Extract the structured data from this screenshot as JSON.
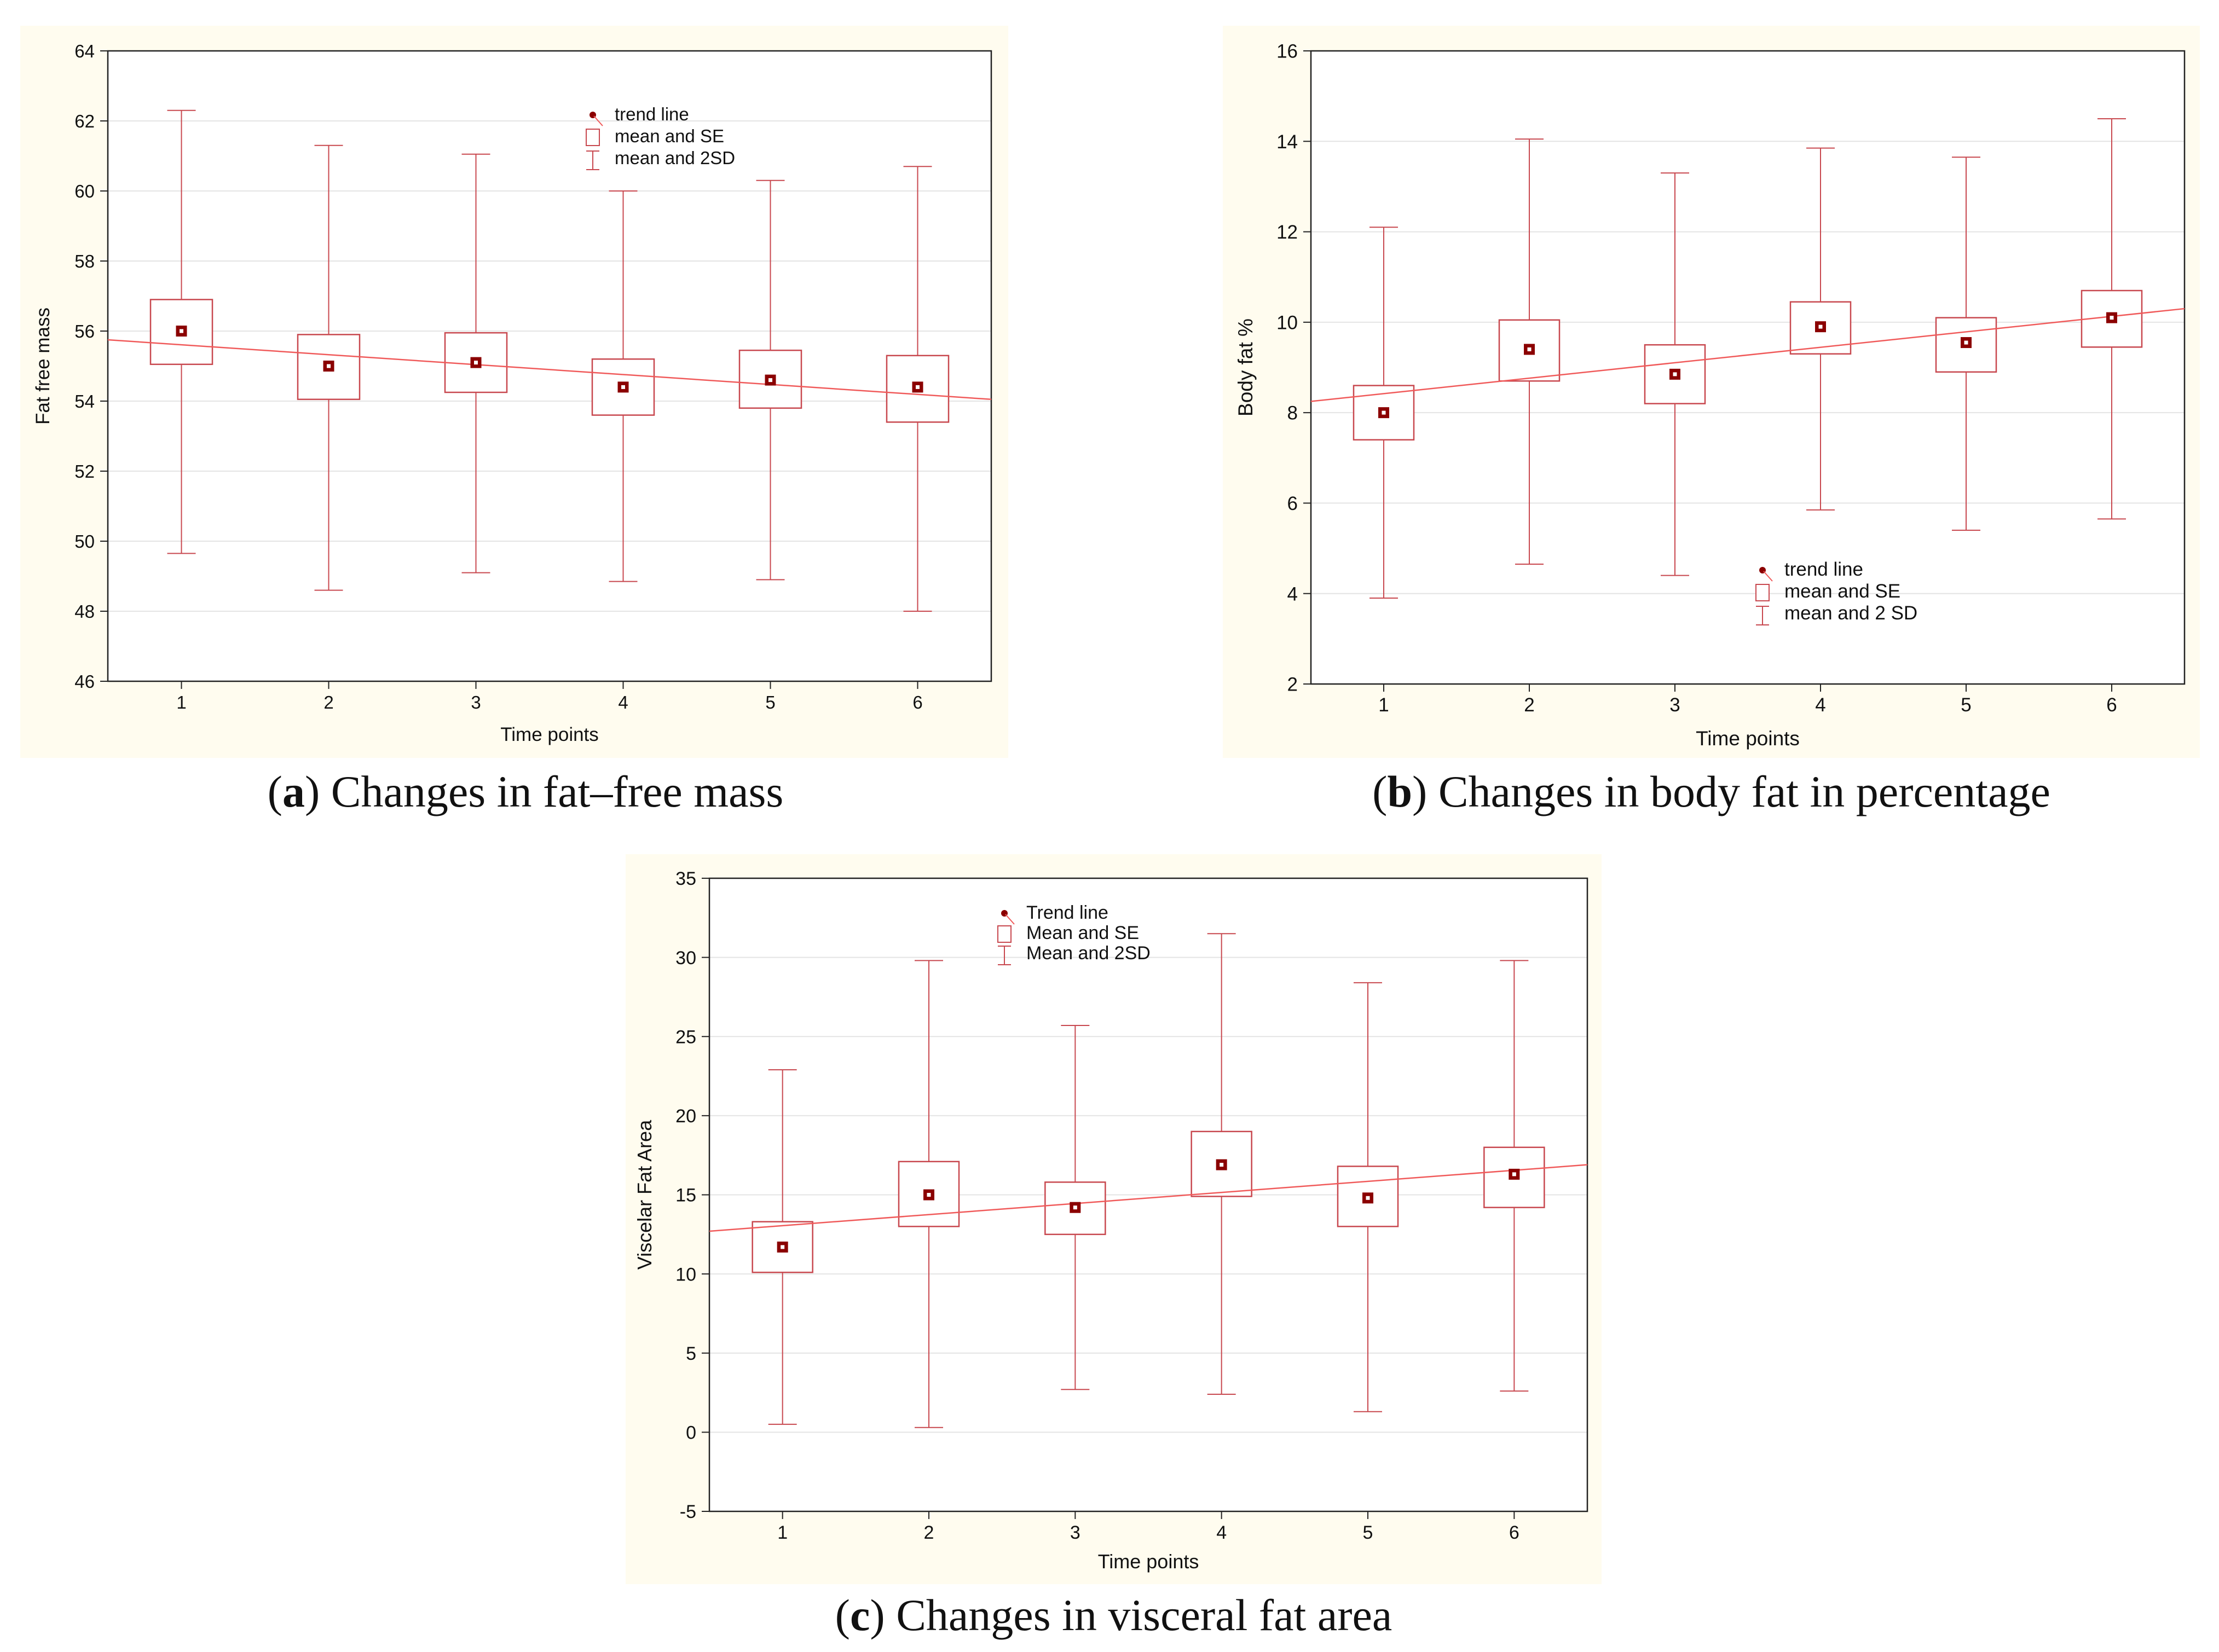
{
  "colors": {
    "box": "#c8484f",
    "trend": "#f05a5a",
    "marker_fill": "#8b0000",
    "grid": "#e4e4e4",
    "panel_bg": "#fffcef",
    "axis": "#222222"
  },
  "chart_data": [
    {
      "type": "box",
      "caption_letter": "a",
      "caption_text": "Changes in fat–free mass",
      "xlabel": "Time points",
      "ylabel": "Fat free mass",
      "categories": [
        "1",
        "2",
        "3",
        "4",
        "5",
        "6"
      ],
      "ylim": [
        46,
        64
      ],
      "yticks": [
        "46",
        "48",
        "50",
        "52",
        "54",
        "56",
        "58",
        "60",
        "62",
        "64"
      ],
      "grid": true,
      "legend_position": "top-center",
      "legend": [
        "trend line",
        "mean and SE",
        "mean and 2SD"
      ],
      "mean": [
        56.0,
        55.0,
        55.1,
        54.4,
        54.6,
        54.4
      ],
      "se_low": [
        55.05,
        54.05,
        54.25,
        53.6,
        53.8,
        53.4
      ],
      "se_high": [
        56.9,
        55.9,
        55.95,
        55.2,
        55.45,
        55.3
      ],
      "sd2_low": [
        49.65,
        48.6,
        49.1,
        48.85,
        48.9,
        48.0
      ],
      "sd2_high": [
        62.3,
        61.3,
        61.05,
        60.0,
        60.3,
        60.7
      ],
      "trend": {
        "x_start": 0.5,
        "y_start": 55.75,
        "x_end": 6.5,
        "y_end": 54.05
      }
    },
    {
      "type": "box",
      "caption_letter": "b",
      "caption_text": "Changes in body fat in percentage",
      "xlabel": "Time points",
      "ylabel": "Body fat %",
      "categories": [
        "1",
        "2",
        "3",
        "4",
        "5",
        "6"
      ],
      "ylim": [
        2,
        16
      ],
      "yticks": [
        "2",
        "4",
        "6",
        "8",
        "10",
        "12",
        "14",
        "16"
      ],
      "grid": true,
      "legend_position": "bottom-center",
      "legend": [
        "trend line",
        "mean and SE",
        "mean and 2 SD"
      ],
      "mean": [
        8.0,
        9.4,
        8.85,
        9.9,
        9.55,
        10.1
      ],
      "se_low": [
        7.4,
        8.7,
        8.2,
        9.3,
        8.9,
        9.45
      ],
      "se_high": [
        8.6,
        10.05,
        9.5,
        10.45,
        10.1,
        10.7
      ],
      "sd2_low": [
        3.9,
        4.65,
        4.4,
        5.85,
        5.4,
        5.65
      ],
      "sd2_high": [
        12.1,
        14.05,
        13.3,
        13.85,
        13.65,
        14.5
      ],
      "trend": {
        "x_start": 0.5,
        "y_start": 8.25,
        "x_end": 6.5,
        "y_end": 10.3
      }
    },
    {
      "type": "box",
      "caption_letter": "c",
      "caption_text": "Changes in visceral fat area",
      "xlabel": "Time points",
      "ylabel": "Viscelar Fat Area",
      "categories": [
        "1",
        "2",
        "3",
        "4",
        "5",
        "6"
      ],
      "ylim": [
        -5,
        35
      ],
      "yticks": [
        "-5",
        "0",
        "5",
        "10",
        "15",
        "20",
        "25",
        "30",
        "35"
      ],
      "grid": true,
      "legend_position": "top-center",
      "legend": [
        "Trend line",
        "Mean and SE",
        "Mean and 2SD"
      ],
      "mean": [
        11.7,
        15.0,
        14.2,
        16.9,
        14.8,
        16.3
      ],
      "se_low": [
        10.1,
        13.0,
        12.5,
        14.9,
        13.0,
        14.2
      ],
      "se_high": [
        13.3,
        17.1,
        15.8,
        19.0,
        16.8,
        18.0
      ],
      "sd2_low": [
        0.5,
        0.3,
        2.7,
        2.4,
        1.3,
        2.6
      ],
      "sd2_high": [
        22.9,
        29.8,
        25.7,
        31.5,
        28.4,
        29.8
      ],
      "trend": {
        "x_start": 0.5,
        "y_start": 12.7,
        "x_end": 6.5,
        "y_end": 16.9
      }
    }
  ]
}
